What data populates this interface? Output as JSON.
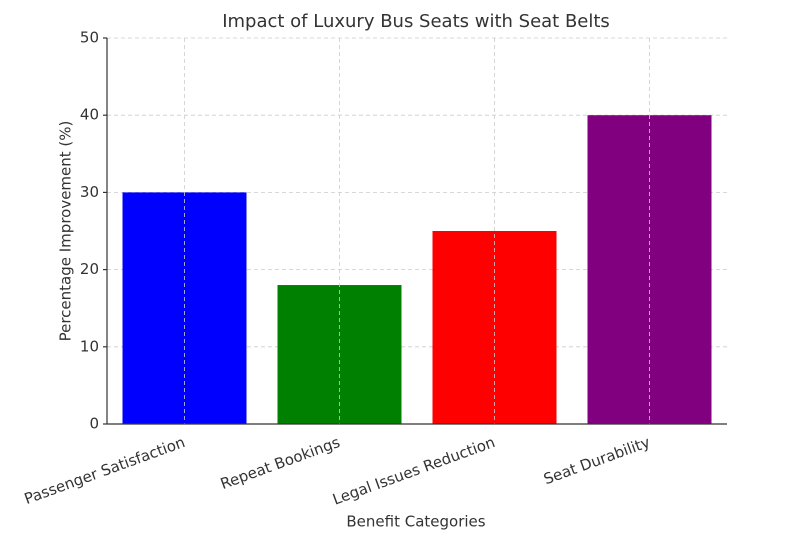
{
  "chart_data": {
    "type": "bar",
    "title": "Impact of Luxury Bus Seats with Seat Belts",
    "x_label": "Benefit Categories",
    "y_label": "Percentage Improvement (%)",
    "categories": [
      "Passenger Satisfaction",
      "Repeat Bookings",
      "Legal Issues Reduction",
      "Seat Durability"
    ],
    "values": [
      30,
      18,
      25,
      40
    ],
    "colors": [
      "#0000ff",
      "#008000",
      "#ff0000",
      "#800080"
    ],
    "ylim": [
      0,
      50
    ],
    "yticks": [
      0,
      10,
      20,
      30,
      40,
      50
    ],
    "grid": true
  }
}
